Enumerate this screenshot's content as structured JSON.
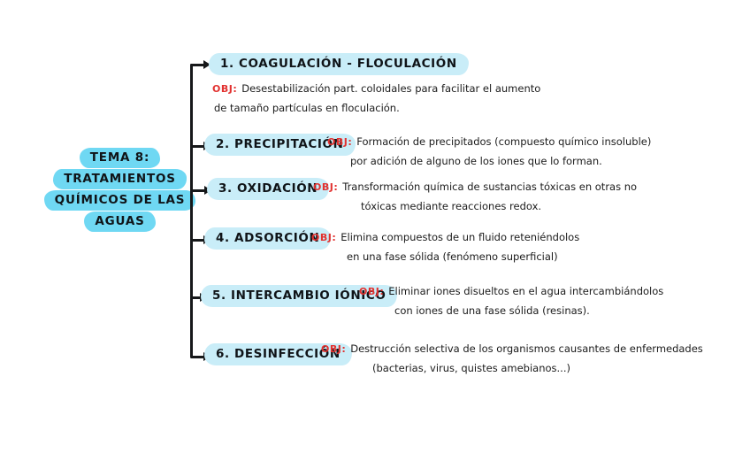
{
  "topic": {
    "lines": [
      "TEMA 8:",
      "TRATAMIENTOS",
      "QUÍMICOS DE LAS",
      "AGUAS"
    ]
  },
  "items": [
    {
      "label": "1. COAGULACIÓN - FLOCULACIÓN",
      "obj_label": "OBJ:",
      "obj_line1": "Desestabilización part. coloidales para facilitar el aumento",
      "obj_line2": "de tamaño partículas en floculación."
    },
    {
      "label": "2. PRECIPITACIÓN",
      "obj_label": "OBJ:",
      "obj_line1": "Formación de precipitados (compuesto químico insoluble)",
      "obj_line2": "por adición de alguno de los iones que lo forman."
    },
    {
      "label": "3. OXIDACIÓN",
      "obj_label": "OBJ:",
      "obj_line1": "Transformación química de sustancias tóxicas en otras no",
      "obj_line2": "tóxicas mediante reacciones redox."
    },
    {
      "label": "4. ADSORCIÓN",
      "obj_label": "OBJ:",
      "obj_line1": "Elimina compuestos de un fluido reteniéndolos",
      "obj_line2": "en una fase sólida (fenómeno superficial)"
    },
    {
      "label": "5. INTERCAMBIO IÓNICO",
      "obj_label": "OBJ:",
      "obj_line1": "Eliminar iones disueltos en el agua intercambiándolos",
      "obj_line2": "con iones de una fase sólida (resinas)."
    },
    {
      "label": "6. DESINFECCIÓN",
      "obj_label": "OBJ:",
      "obj_line1": "Destrucción selectiva de los organismos causantes de enfermedades",
      "obj_line2": "(bacterias, virus, quistes amebianos...)"
    }
  ],
  "colors": {
    "background": "#ffffff",
    "topic_highlight": "#6fd8f3",
    "item_highlight": "#c9edf8",
    "ink": "#1b1b1b",
    "obj_red": "#e23230"
  }
}
